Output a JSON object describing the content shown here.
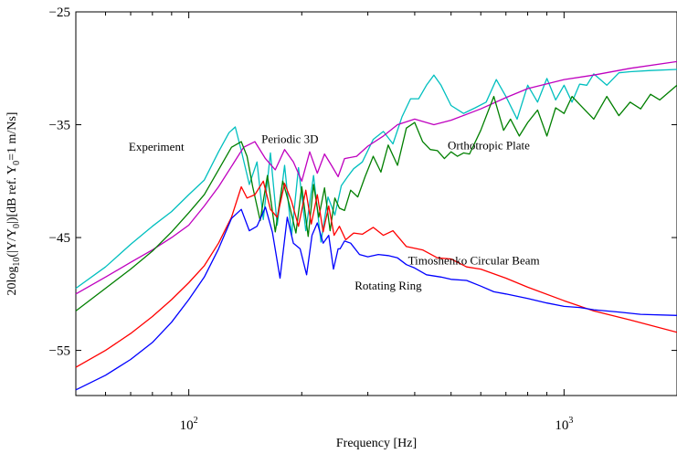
{
  "chart_data": {
    "type": "line",
    "xlabel": "Frequency [Hz]",
    "ylabel": "20log10(|Y/Y0|)[dB ref. Y0=1 m/Ns]",
    "xscale": "log",
    "xlim": [
      50,
      2000
    ],
    "ylim": [
      -59,
      -25
    ],
    "xticks": [
      {
        "value": 100,
        "base": "10",
        "exp": "2"
      },
      {
        "value": 1000,
        "base": "10",
        "exp": "3"
      }
    ],
    "yticks": [
      -25,
      -35,
      -45,
      -55
    ],
    "grid": false,
    "legend": "none",
    "series": [
      {
        "name": "Experiment",
        "color": "#00bfbf",
        "x": [
          50,
          60,
          70,
          80,
          90,
          100,
          110,
          120,
          128,
          133,
          138,
          145,
          152,
          158,
          165,
          172,
          180,
          188,
          196,
          205,
          215,
          225,
          235,
          245,
          255,
          265,
          275,
          290,
          310,
          330,
          350,
          370,
          390,
          410,
          430,
          450,
          470,
          500,
          540,
          580,
          620,
          660,
          700,
          750,
          800,
          850,
          900,
          950,
          1000,
          1050,
          1100,
          1150,
          1200,
          1300,
          1400,
          1500,
          1700,
          2000
        ],
        "y": [
          -49.5,
          -47.6,
          -45.6,
          -44,
          -42.7,
          -41.2,
          -39.9,
          -37.4,
          -35.7,
          -35.2,
          -37.3,
          -40.3,
          -38.3,
          -43.4,
          -37.5,
          -43.9,
          -38.6,
          -44.8,
          -38.8,
          -44.4,
          -39.5,
          -45.4,
          -41.4,
          -43,
          -40.4,
          -39.6,
          -38.9,
          -38.3,
          -36.3,
          -35.6,
          -36.7,
          -34.3,
          -32.7,
          -32.7,
          -31.5,
          -30.6,
          -31.5,
          -33.3,
          -34,
          -33.5,
          -33,
          -31,
          -32.5,
          -34.5,
          -31.5,
          -33,
          -30.9,
          -32.8,
          -31.5,
          -33,
          -31.4,
          -31.5,
          -30.5,
          -31.5,
          -30.4,
          -30.3,
          -30.2,
          -30.1
        ]
      },
      {
        "name": "Periodic 3D",
        "color": "#bf00bf",
        "x": [
          50,
          60,
          70,
          80,
          90,
          100,
          110,
          120,
          130,
          140,
          150,
          160,
          170,
          180,
          190,
          200,
          210,
          220,
          230,
          240,
          250,
          260,
          280,
          300,
          330,
          360,
          400,
          450,
          500,
          600,
          700,
          800,
          1000,
          1200,
          1500,
          2000
        ],
        "y": [
          -50,
          -48.5,
          -47.2,
          -46.1,
          -45,
          -43.9,
          -42.2,
          -40.5,
          -38.7,
          -37,
          -36.5,
          -38,
          -39,
          -37.2,
          -38.3,
          -40,
          -37.4,
          -39.3,
          -37.6,
          -38.6,
          -39.6,
          -38,
          -37.8,
          -36.9,
          -36,
          -35,
          -34.5,
          -35,
          -34.6,
          -33.6,
          -32.6,
          -31.8,
          -31,
          -30.6,
          -30,
          -29.4
        ]
      },
      {
        "name": "Orthotropic Plate",
        "color": "#007f00",
        "x": [
          50,
          60,
          70,
          80,
          90,
          100,
          110,
          120,
          130,
          138,
          143,
          148,
          155,
          162,
          170,
          178,
          185,
          193,
          200,
          208,
          215,
          222,
          230,
          238,
          245,
          252,
          260,
          270,
          282,
          295,
          310,
          325,
          340,
          360,
          380,
          400,
          420,
          440,
          460,
          480,
          500,
          520,
          540,
          560,
          600,
          650,
          690,
          720,
          760,
          800,
          850,
          900,
          950,
          1000,
          1050,
          1100,
          1200,
          1300,
          1400,
          1500,
          1600,
          1700,
          1800,
          2000
        ],
        "y": [
          -51.5,
          -49.5,
          -47.8,
          -46.2,
          -44.5,
          -42.8,
          -41.2,
          -39,
          -37,
          -36.5,
          -37.8,
          -40.5,
          -43.5,
          -39.5,
          -44.5,
          -40,
          -42,
          -44.6,
          -40.5,
          -44.9,
          -40.3,
          -43.2,
          -40.6,
          -44.4,
          -41.5,
          -42.4,
          -42.6,
          -40.8,
          -41.4,
          -39.6,
          -37.8,
          -39.2,
          -36.8,
          -38.6,
          -35.3,
          -34.8,
          -36.5,
          -37.2,
          -37.3,
          -38,
          -37.4,
          -37.8,
          -37.5,
          -37.6,
          -35.5,
          -32.5,
          -35.5,
          -34.5,
          -36,
          -34.8,
          -33.7,
          -36,
          -33.5,
          -34,
          -32.5,
          -33.2,
          -34.5,
          -32.5,
          -34.2,
          -33,
          -33.6,
          -32.3,
          -32.8,
          -31.5
        ]
      },
      {
        "name": "Timoshenko Circular Beam",
        "color": "#ff0000",
        "x": [
          50,
          60,
          70,
          80,
          90,
          100,
          110,
          120,
          130,
          138,
          143,
          150,
          158,
          165,
          172,
          180,
          188,
          196,
          205,
          212,
          220,
          228,
          236,
          244,
          252,
          262,
          275,
          290,
          310,
          330,
          350,
          380,
          420,
          460,
          500,
          550,
          600,
          700,
          800,
          1000,
          1200,
          1500,
          2000
        ],
        "y": [
          -56.5,
          -55,
          -53.5,
          -52,
          -50.5,
          -49,
          -47.5,
          -45.5,
          -43.2,
          -40.5,
          -41.5,
          -41.2,
          -40,
          -42.5,
          -43.2,
          -40.2,
          -41.8,
          -44,
          -40.8,
          -43.8,
          -41.2,
          -44.5,
          -42.2,
          -44.8,
          -44,
          -45.2,
          -44.6,
          -44.7,
          -44.1,
          -44.8,
          -44.4,
          -45.8,
          -46.1,
          -46.8,
          -46.9,
          -47.6,
          -47.8,
          -48.6,
          -49.4,
          -50.6,
          -51.5,
          -52.3,
          -53.4
        ]
      },
      {
        "name": "Rotating Ring",
        "color": "#0000ff",
        "x": [
          50,
          60,
          70,
          80,
          90,
          100,
          110,
          120,
          130,
          138,
          145,
          152,
          160,
          167,
          175,
          183,
          190,
          198,
          206,
          213,
          220,
          228,
          236,
          243,
          250,
          253,
          260,
          270,
          285,
          300,
          320,
          340,
          360,
          380,
          400,
          430,
          470,
          500,
          550,
          600,
          650,
          700,
          800,
          900,
          1000,
          1100,
          1200,
          1400,
          1600,
          2000
        ],
        "y": [
          -58.5,
          -57.2,
          -55.8,
          -54.3,
          -52.5,
          -50.5,
          -48.5,
          -46,
          -43.3,
          -42.5,
          -44.4,
          -44,
          -42.3,
          -44.5,
          -48.6,
          -43.2,
          -45.5,
          -46,
          -48.3,
          -44.8,
          -43.7,
          -45.5,
          -44.8,
          -47.8,
          -46,
          -46,
          -45.3,
          -45.5,
          -46.5,
          -46.7,
          -46.5,
          -46.6,
          -46.8,
          -47.4,
          -47.7,
          -48.3,
          -48.5,
          -48.7,
          -48.8,
          -49.3,
          -49.8,
          -50,
          -50.4,
          -50.8,
          -51.1,
          -51.2,
          -51.4,
          -51.6,
          -51.8,
          -51.9
        ]
      }
    ],
    "annotations": [
      {
        "text": "Experiment",
        "x": 82,
        "y": -37.3
      },
      {
        "text": "Periodic 3D",
        "x": 186,
        "y": -36.6
      },
      {
        "text": "Orthotropic Plate",
        "x": 630,
        "y": -37.2
      },
      {
        "text": "Timoshenko Circular Beam",
        "x": 575,
        "y": -47.4
      },
      {
        "text": "Rotating Ring",
        "x": 340,
        "y": -49.6
      }
    ]
  }
}
